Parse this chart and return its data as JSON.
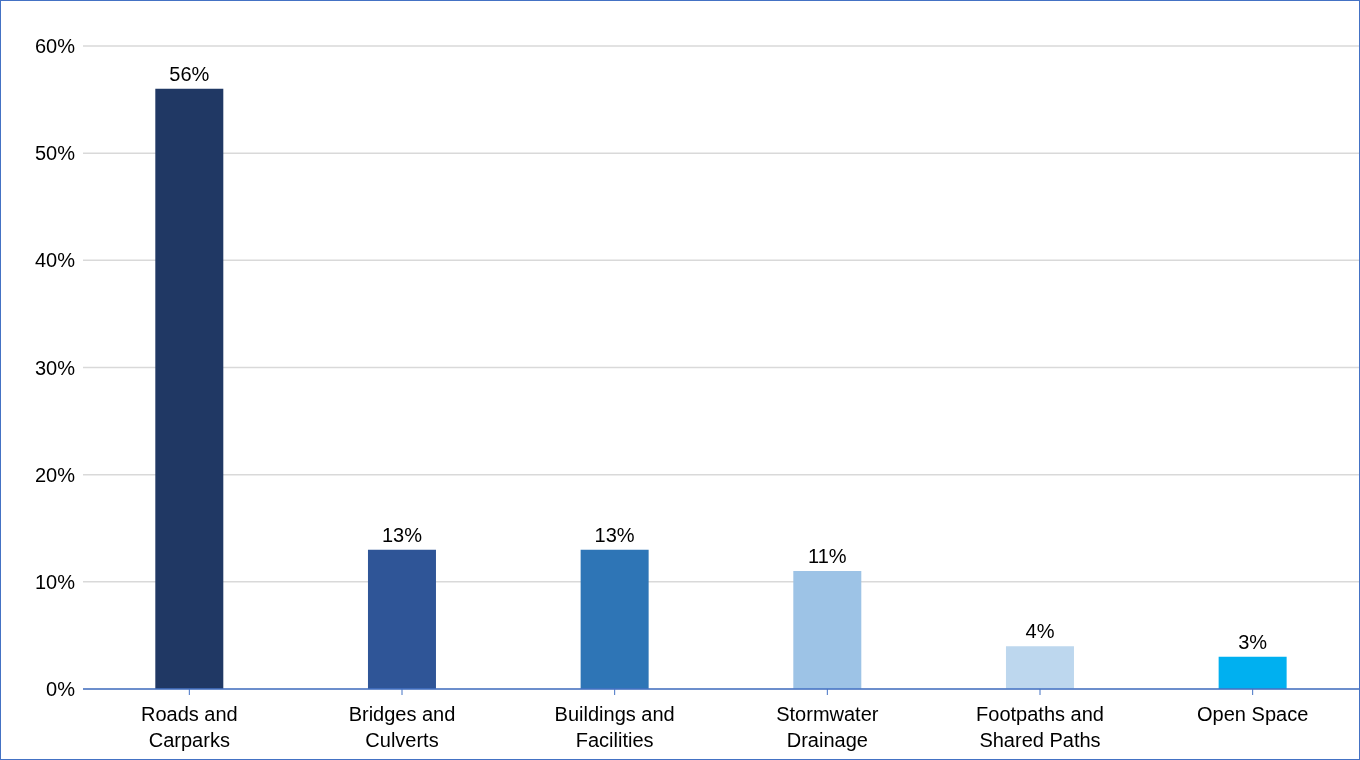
{
  "chart_data": {
    "type": "bar",
    "categories": [
      "Roads and Carparks",
      "Bridges and Culverts",
      "Buildings and Facilities",
      "Stormwater Drainage",
      "Footpaths and Shared Paths",
      "Open Space"
    ],
    "values": [
      56,
      13,
      13,
      11,
      4,
      3
    ],
    "value_labels": [
      "56%",
      "13%",
      "13%",
      "11%",
      "4%",
      "3%"
    ],
    "colors": [
      "#203864",
      "#2f5597",
      "#2e75b6",
      "#9dc3e6",
      "#bdd7ee",
      "#00b0f0"
    ],
    "ylim": [
      0,
      60
    ],
    "yticks": [
      {
        "value": 0,
        "label": "0%"
      },
      {
        "value": 10,
        "label": "10%"
      },
      {
        "value": 20,
        "label": "20%"
      },
      {
        "value": 30,
        "label": "30%"
      },
      {
        "value": 40,
        "label": "40%"
      },
      {
        "value": 50,
        "label": "50%"
      },
      {
        "value": 60,
        "label": "60%"
      }
    ],
    "grid": "y",
    "legend": false
  }
}
